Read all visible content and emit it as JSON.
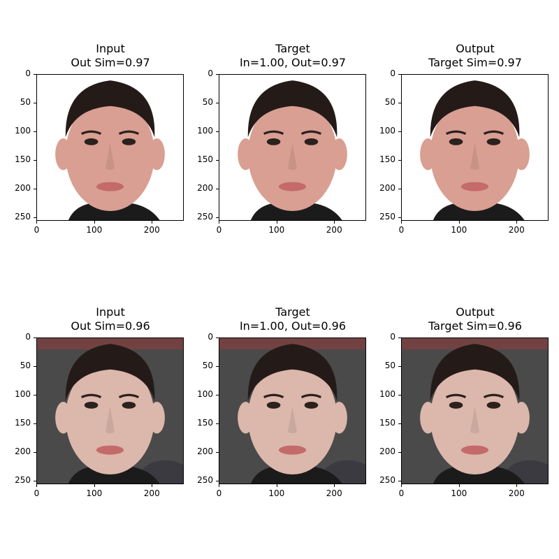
{
  "panels": [
    {
      "title1": "Input",
      "title2": "Out Sim=0.97"
    },
    {
      "title1": "Target",
      "title2": "In=1.00, Out=0.97"
    },
    {
      "title1": "Output",
      "title2": "Target Sim=0.97"
    },
    {
      "title1": "Input",
      "title2": "Out Sim=0.96"
    },
    {
      "title1": "Target",
      "title2": "In=1.00, Out=0.96"
    },
    {
      "title1": "Output",
      "title2": "Target Sim=0.96"
    }
  ],
  "x_ticks": [
    0,
    100,
    200
  ],
  "y_ticks": [
    0,
    50,
    100,
    150,
    200,
    250
  ],
  "axis_range": [
    0,
    256
  ],
  "colors": {
    "skin_row1": "#d99f92",
    "skin_row2": "#dcb7ab",
    "hair": "#241b18",
    "bg_row1": "#ffffff",
    "bg_row2": "#4a4a4a",
    "shirt": "#1b1b1b",
    "lips": "#c46a6a"
  }
}
